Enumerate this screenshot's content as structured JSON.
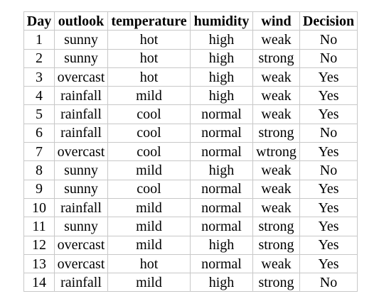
{
  "table": {
    "headers": [
      "Day",
      "outlook",
      "temperature",
      "humidity",
      "wind",
      "Decision"
    ],
    "rows": [
      [
        "1",
        "sunny",
        "hot",
        "high",
        "weak",
        "No"
      ],
      [
        "2",
        "sunny",
        "hot",
        "high",
        "strong",
        "No"
      ],
      [
        "3",
        "overcast",
        "hot",
        "high",
        "weak",
        "Yes"
      ],
      [
        "4",
        "rainfall",
        "mild",
        "high",
        "weak",
        "Yes"
      ],
      [
        "5",
        "rainfall",
        "cool",
        "normal",
        "weak",
        "Yes"
      ],
      [
        "6",
        "rainfall",
        "cool",
        "normal",
        "strong",
        "No"
      ],
      [
        "7",
        "overcast",
        "cool",
        "normal",
        "wtrong",
        "Yes"
      ],
      [
        "8",
        "sunny",
        "mild",
        "high",
        "weak",
        "No"
      ],
      [
        "9",
        "sunny",
        "cool",
        "normal",
        "weak",
        "Yes"
      ],
      [
        "10",
        "rainfall",
        "mild",
        "normal",
        "weak",
        "Yes"
      ],
      [
        "11",
        "sunny",
        "mild",
        "normal",
        "strong",
        "Yes"
      ],
      [
        "12",
        "overcast",
        "mild",
        "high",
        "strong",
        "Yes"
      ],
      [
        "13",
        "overcast",
        "hot",
        "normal",
        "weak",
        "Yes"
      ],
      [
        "14",
        "rainfall",
        "mild",
        "high",
        "strong",
        "No"
      ]
    ]
  },
  "colors": {
    "border": "#c8c8c8",
    "text": "#000000",
    "background": "#ffffff"
  }
}
